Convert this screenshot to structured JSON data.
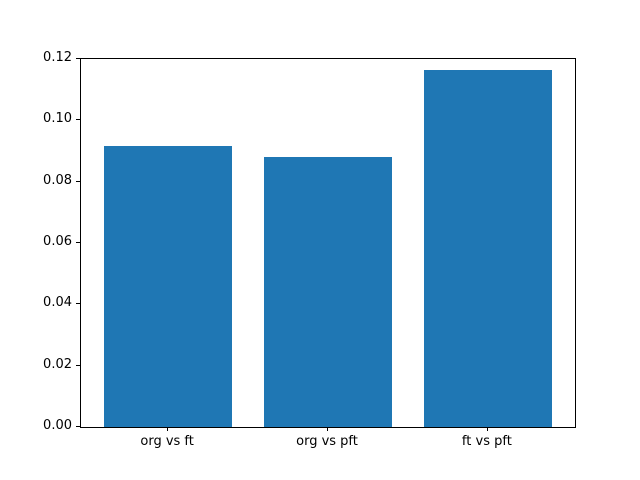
{
  "chart_data": {
    "type": "bar",
    "categories": [
      "org vs ft",
      "org vs pft",
      "ft vs pft"
    ],
    "values": [
      0.0916,
      0.0879,
      0.1163
    ],
    "title": "",
    "xlabel": "",
    "ylabel": "",
    "ylim": [
      0,
      0.12
    ],
    "yticks": [
      0.0,
      0.02,
      0.04,
      0.06,
      0.08,
      0.1,
      0.12
    ],
    "ytick_format_decimals": 2,
    "xlim": [
      -0.545,
      2.545
    ],
    "bar_positions": [
      0,
      1,
      2
    ],
    "bar_width_units": 0.8,
    "bar_color": "#1f77b4",
    "grid": false,
    "legend": null
  },
  "colors": {
    "background": "#ffffff",
    "axis_line": "#000000",
    "tick_text": "#000000"
  }
}
